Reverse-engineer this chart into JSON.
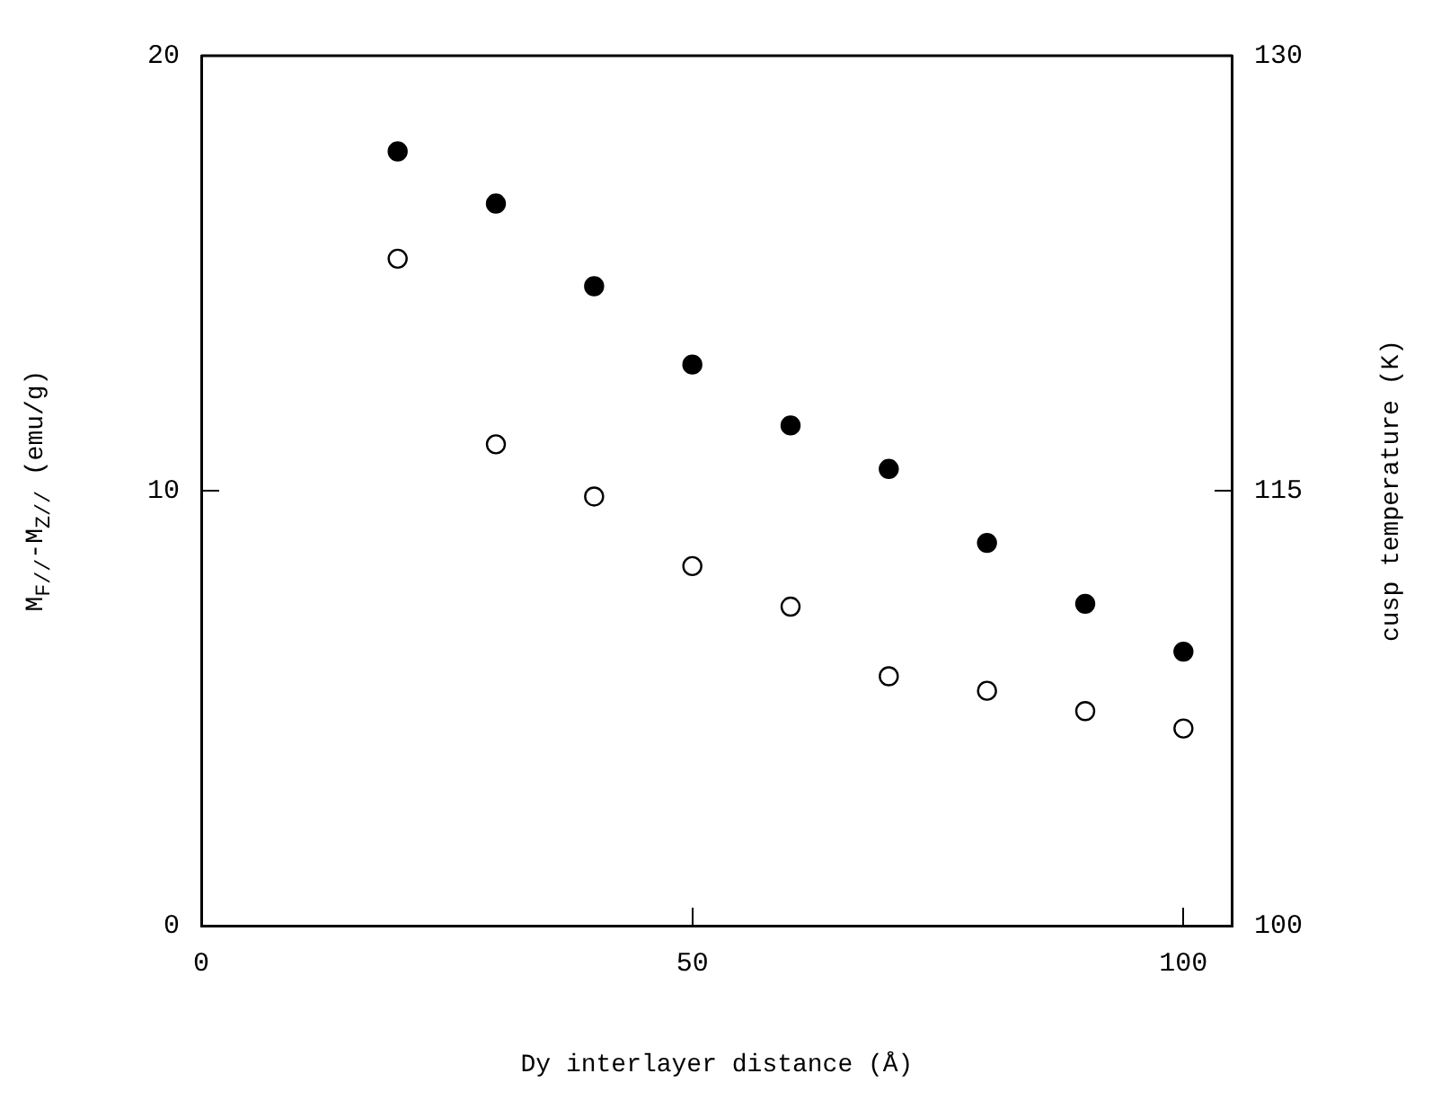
{
  "chart_data": {
    "type": "scatter",
    "xlabel": "Dy interlayer distance (Å)",
    "ylabel": "M$_{F//}$-M$_{Z//}$ (emu/g)",
    "y2label": "cusp temperature (K)",
    "x": [
      20,
      30,
      40,
      50,
      60,
      70,
      80,
      90,
      100
    ],
    "series": [
      {
        "color": "#000000",
        "values": [
          17.8,
          16.6,
          14.7,
          12.9,
          11.5,
          10.5,
          8.8,
          7.4,
          6.3
        ]
      },
      {
        "color": "#000000",
        "axis": "y2",
        "values": [
          123,
          116.6,
          114.8,
          112.4,
          111,
          108.6,
          108.1,
          107.4,
          106.8
        ]
      }
    ],
    "xlim": [
      0,
      105
    ],
    "xticks": [
      0,
      50,
      100
    ],
    "ylim": [
      0,
      20
    ],
    "yticks": [
      0,
      10,
      20
    ],
    "y2lim": [
      100,
      130
    ],
    "y2ticks": [
      100,
      115,
      130
    ],
    "marker": "circle",
    "grid": false,
    "legend": false
  }
}
